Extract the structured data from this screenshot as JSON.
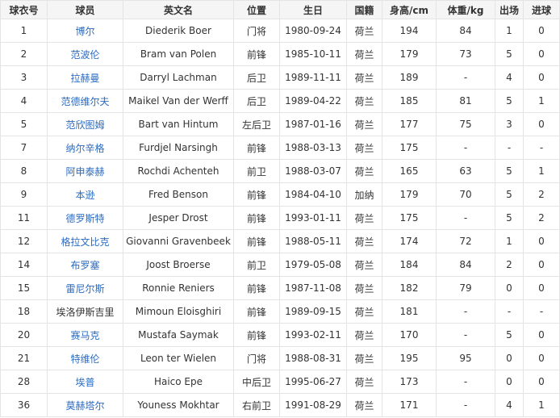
{
  "colors": {
    "link": "#2a6bc1",
    "header_bg": "#f5f5f5",
    "border": "#e4e4e4"
  },
  "headers": [
    "球衣号",
    "球员",
    "英文名",
    "位置",
    "生日",
    "国籍",
    "身高/cm",
    "体重/kg",
    "出场",
    "进球"
  ],
  "rows": [
    {
      "no": "1",
      "name": "博尔",
      "linked": true,
      "en": "Diederik Boer",
      "pos": "门将",
      "birth": "1980-09-24",
      "nat": "荷兰",
      "height": "194",
      "weight": "84",
      "apps": "1",
      "goals": "0"
    },
    {
      "no": "2",
      "name": "范波伦",
      "linked": true,
      "en": "Bram van Polen",
      "pos": "前锋",
      "birth": "1985-10-11",
      "nat": "荷兰",
      "height": "179",
      "weight": "73",
      "apps": "5",
      "goals": "0"
    },
    {
      "no": "3",
      "name": "拉赫曼",
      "linked": true,
      "en": "Darryl Lachman",
      "pos": "后卫",
      "birth": "1989-11-11",
      "nat": "荷兰",
      "height": "189",
      "weight": "-",
      "apps": "4",
      "goals": "0"
    },
    {
      "no": "4",
      "name": "范德维尔夫",
      "linked": true,
      "en": "Maikel Van der Werff",
      "pos": "后卫",
      "birth": "1989-04-22",
      "nat": "荷兰",
      "height": "185",
      "weight": "81",
      "apps": "5",
      "goals": "1"
    },
    {
      "no": "5",
      "name": "范欣图姆",
      "linked": true,
      "en": "Bart van Hintum",
      "pos": "左后卫",
      "birth": "1987-01-16",
      "nat": "荷兰",
      "height": "177",
      "weight": "75",
      "apps": "3",
      "goals": "0"
    },
    {
      "no": "7",
      "name": "纳尔辛格",
      "linked": true,
      "en": "Furdjel Narsingh",
      "pos": "前锋",
      "birth": "1988-03-13",
      "nat": "荷兰",
      "height": "175",
      "weight": "-",
      "apps": "-",
      "goals": "-"
    },
    {
      "no": "8",
      "name": "阿申泰赫",
      "linked": true,
      "en": "Rochdi Achenteh",
      "pos": "前卫",
      "birth": "1988-03-07",
      "nat": "荷兰",
      "height": "165",
      "weight": "63",
      "apps": "5",
      "goals": "1"
    },
    {
      "no": "9",
      "name": "本逊",
      "linked": true,
      "en": "Fred Benson",
      "pos": "前锋",
      "birth": "1984-04-10",
      "nat": "加纳",
      "height": "179",
      "weight": "70",
      "apps": "5",
      "goals": "2"
    },
    {
      "no": "11",
      "name": "德罗斯特",
      "linked": true,
      "en": "Jesper Drost",
      "pos": "前锋",
      "birth": "1993-01-11",
      "nat": "荷兰",
      "height": "175",
      "weight": "-",
      "apps": "5",
      "goals": "2"
    },
    {
      "no": "12",
      "name": "格拉文比克",
      "linked": true,
      "en": "Giovanni Gravenbeek",
      "pos": "前锋",
      "birth": "1988-05-11",
      "nat": "荷兰",
      "height": "174",
      "weight": "72",
      "apps": "1",
      "goals": "0"
    },
    {
      "no": "14",
      "name": "布罗塞",
      "linked": true,
      "en": "Joost Broerse",
      "pos": "前卫",
      "birth": "1979-05-08",
      "nat": "荷兰",
      "height": "184",
      "weight": "84",
      "apps": "2",
      "goals": "0"
    },
    {
      "no": "15",
      "name": "雷尼尔斯",
      "linked": true,
      "en": "Ronnie Reniers",
      "pos": "前锋",
      "birth": "1987-11-08",
      "nat": "荷兰",
      "height": "182",
      "weight": "79",
      "apps": "0",
      "goals": "0"
    },
    {
      "no": "18",
      "name": "埃洛伊斯吉里",
      "linked": false,
      "en": "Mimoun Eloisghiri",
      "pos": "前锋",
      "birth": "1989-09-15",
      "nat": "荷兰",
      "height": "181",
      "weight": "-",
      "apps": "-",
      "goals": "-"
    },
    {
      "no": "20",
      "name": "赛马克",
      "linked": true,
      "en": "Mustafa Saymak",
      "pos": "前锋",
      "birth": "1993-02-11",
      "nat": "荷兰",
      "height": "170",
      "weight": "-",
      "apps": "5",
      "goals": "0"
    },
    {
      "no": "21",
      "name": "特维伦",
      "linked": true,
      "en": "Leon ter Wielen",
      "pos": "门将",
      "birth": "1988-08-31",
      "nat": "荷兰",
      "height": "195",
      "weight": "95",
      "apps": "0",
      "goals": "0"
    },
    {
      "no": "28",
      "name": "埃普",
      "linked": true,
      "en": "Haico Epe",
      "pos": "中后卫",
      "birth": "1995-06-27",
      "nat": "荷兰",
      "height": "173",
      "weight": "-",
      "apps": "0",
      "goals": "0"
    },
    {
      "no": "36",
      "name": "莫赫塔尔",
      "linked": true,
      "en": "Youness Mokhtar",
      "pos": "右前卫",
      "birth": "1991-08-29",
      "nat": "荷兰",
      "height": "171",
      "weight": "-",
      "apps": "4",
      "goals": "1"
    }
  ]
}
